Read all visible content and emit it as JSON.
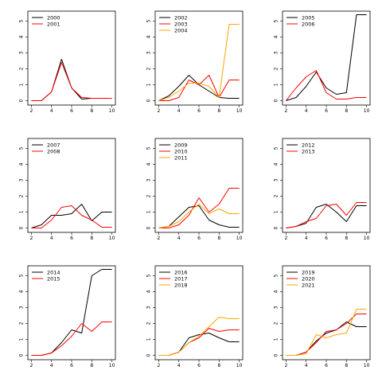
{
  "chart_data": [
    {
      "type": "line",
      "x": [
        2,
        3,
        4,
        5,
        6,
        7,
        8,
        9,
        10
      ],
      "ylim": [
        0,
        5.5
      ],
      "xlim": [
        2,
        10
      ],
      "xticks": [
        "2",
        "4",
        "6",
        "8",
        "10"
      ],
      "yticks": [
        "0",
        "1",
        "2",
        "3",
        "4",
        "5"
      ],
      "legend": "top-left",
      "series": [
        {
          "name": "2000",
          "color": "#000000",
          "values": [
            0,
            0,
            0.55,
            2.6,
            0.8,
            0.1,
            0.15,
            0.15,
            0.15
          ]
        },
        {
          "name": "2001",
          "color": "#ff0000",
          "values": [
            0,
            0,
            0.55,
            2.4,
            0.8,
            0.2,
            0.15,
            0.15,
            0.15
          ]
        }
      ]
    },
    {
      "type": "line",
      "x": [
        2,
        3,
        4,
        5,
        6,
        7,
        8,
        9,
        10
      ],
      "ylim": [
        0,
        5.5
      ],
      "xlim": [
        2,
        10
      ],
      "xticks": [
        "2",
        "4",
        "6",
        "8",
        "10"
      ],
      "yticks": [
        "0",
        "1",
        "2",
        "3",
        "4",
        "5"
      ],
      "legend": "top-left",
      "series": [
        {
          "name": "2002",
          "color": "#000000",
          "values": [
            0,
            0.3,
            0.9,
            1.6,
            1.0,
            0.6,
            0.2,
            0.15,
            0.15
          ]
        },
        {
          "name": "2003",
          "color": "#ff0000",
          "values": [
            0,
            0,
            0.2,
            1.3,
            1.0,
            1.6,
            0.2,
            1.3,
            1.3
          ]
        },
        {
          "name": "2004",
          "color": "#ffa500",
          "values": [
            0,
            0.2,
            0.6,
            1.1,
            1.1,
            0.9,
            0.2,
            4.8,
            4.8
          ]
        }
      ]
    },
    {
      "type": "line",
      "x": [
        2,
        3,
        4,
        5,
        6,
        7,
        8,
        9,
        10
      ],
      "ylim": [
        0,
        5.5
      ],
      "xlim": [
        2,
        10
      ],
      "xticks": [
        "2",
        "4",
        "6",
        "8",
        "10"
      ],
      "yticks": [
        "0",
        "1",
        "2",
        "3",
        "4",
        "5"
      ],
      "legend": "top-left",
      "series": [
        {
          "name": "2005",
          "color": "#000000",
          "values": [
            0,
            0.2,
            0.9,
            1.8,
            0.8,
            0.4,
            0.5,
            5.4,
            5.4
          ]
        },
        {
          "name": "2006",
          "color": "#ff0000",
          "values": [
            0,
            0.8,
            1.5,
            1.9,
            0.5,
            0.1,
            0.1,
            0.2,
            0.2
          ]
        }
      ]
    },
    {
      "type": "line",
      "x": [
        2,
        3,
        4,
        5,
        6,
        7,
        8,
        9,
        10
      ],
      "ylim": [
        0,
        5.5
      ],
      "xlim": [
        2,
        10
      ],
      "xticks": [
        "2",
        "4",
        "6",
        "8",
        "10"
      ],
      "yticks": [
        "0",
        "1",
        "2",
        "3",
        "4",
        "5"
      ],
      "legend": "top-left",
      "series": [
        {
          "name": "2007",
          "color": "#000000",
          "values": [
            0,
            0.2,
            0.8,
            0.8,
            0.9,
            1.5,
            0.45,
            1.0,
            1.0
          ]
        },
        {
          "name": "2008",
          "color": "#ff0000",
          "values": [
            0,
            0,
            0.5,
            1.3,
            1.4,
            0.8,
            0.5,
            0.05,
            0.05
          ]
        }
      ]
    },
    {
      "type": "line",
      "x": [
        2,
        3,
        4,
        5,
        6,
        7,
        8,
        9,
        10
      ],
      "ylim": [
        0,
        5.5
      ],
      "xlim": [
        2,
        10
      ],
      "xticks": [
        "2",
        "4",
        "6",
        "8",
        "10"
      ],
      "yticks": [
        "0",
        "1",
        "2",
        "3",
        "4",
        "5"
      ],
      "legend": "top-left",
      "series": [
        {
          "name": "2009",
          "color": "#000000",
          "values": [
            0,
            0.1,
            0.7,
            1.3,
            1.4,
            0.5,
            0.2,
            0.05,
            0.05
          ]
        },
        {
          "name": "2010",
          "color": "#ff0000",
          "values": [
            0,
            0,
            0.2,
            0.8,
            1.9,
            1.0,
            1.5,
            2.5,
            2.5
          ]
        },
        {
          "name": "2011",
          "color": "#ffa500",
          "values": [
            0,
            0.1,
            0.4,
            1.0,
            1.5,
            0.9,
            1.2,
            0.9,
            0.9
          ]
        }
      ]
    },
    {
      "type": "line",
      "x": [
        2,
        3,
        4,
        5,
        6,
        7,
        8,
        9,
        10
      ],
      "ylim": [
        0,
        5.5
      ],
      "xlim": [
        2,
        10
      ],
      "xticks": [
        "2",
        "4",
        "6",
        "8",
        "10"
      ],
      "yticks": [
        "0",
        "1",
        "2",
        "3",
        "4",
        "5"
      ],
      "legend": "top-left",
      "series": [
        {
          "name": "2012",
          "color": "#000000",
          "values": [
            0,
            0.1,
            0.3,
            1.3,
            1.5,
            1.0,
            0.4,
            1.4,
            1.4
          ]
        },
        {
          "name": "2013",
          "color": "#ff0000",
          "values": [
            0,
            0.1,
            0.4,
            0.6,
            1.4,
            1.5,
            0.8,
            1.6,
            1.6
          ]
        }
      ]
    },
    {
      "type": "line",
      "x": [
        2,
        3,
        4,
        5,
        6,
        7,
        8,
        9,
        10
      ],
      "ylim": [
        0,
        5.5
      ],
      "xlim": [
        2,
        10
      ],
      "xticks": [
        "2",
        "4",
        "6",
        "8",
        "10"
      ],
      "yticks": [
        "0",
        "1",
        "2",
        "3",
        "4",
        "5"
      ],
      "legend": "top-left",
      "series": [
        {
          "name": "2014",
          "color": "#000000",
          "values": [
            0,
            0,
            0.15,
            0.8,
            1.6,
            1.4,
            5.0,
            5.4,
            5.4
          ]
        },
        {
          "name": "2015",
          "color": "#ff0000",
          "values": [
            0,
            0,
            0.15,
            0.6,
            1.2,
            2.0,
            1.5,
            2.1,
            2.1
          ]
        }
      ]
    },
    {
      "type": "line",
      "x": [
        2,
        3,
        4,
        5,
        6,
        7,
        8,
        9,
        10
      ],
      "ylim": [
        0,
        5.5
      ],
      "xlim": [
        2,
        10
      ],
      "xticks": [
        "2",
        "4",
        "6",
        "8",
        "10"
      ],
      "yticks": [
        "0",
        "1",
        "2",
        "3",
        "4",
        "5"
      ],
      "legend": "top-left",
      "series": [
        {
          "name": "2016",
          "color": "#000000",
          "values": [
            0,
            0,
            0.2,
            1.1,
            1.3,
            1.4,
            1.1,
            0.85,
            0.85
          ]
        },
        {
          "name": "2017",
          "color": "#ff0000",
          "values": [
            0,
            0,
            0.2,
            0.8,
            1.1,
            1.7,
            1.5,
            1.6,
            1.6
          ]
        },
        {
          "name": "2018",
          "color": "#ffa500",
          "values": [
            0,
            0,
            0.2,
            0.8,
            1.2,
            1.8,
            2.4,
            2.3,
            2.3
          ]
        }
      ]
    },
    {
      "type": "line",
      "x": [
        2,
        3,
        4,
        5,
        6,
        7,
        8,
        9,
        10
      ],
      "ylim": [
        0,
        5.5
      ],
      "xlim": [
        2,
        10
      ],
      "xticks": [
        "2",
        "4",
        "6",
        "8",
        "10"
      ],
      "yticks": [
        "0",
        "1",
        "2",
        "3",
        "4",
        "5"
      ],
      "legend": "top-left",
      "series": [
        {
          "name": "2019",
          "color": "#000000",
          "values": [
            0,
            0,
            0.2,
            0.9,
            1.4,
            1.6,
            2.1,
            1.8,
            1.8
          ]
        },
        {
          "name": "2020",
          "color": "#ff0000",
          "values": [
            0,
            0,
            0.2,
            0.8,
            1.5,
            1.6,
            2.0,
            2.6,
            2.6
          ]
        },
        {
          "name": "2021",
          "color": "#ffa500",
          "values": [
            0,
            0,
            0.1,
            1.3,
            1.1,
            1.3,
            1.4,
            2.9,
            2.9
          ]
        }
      ]
    }
  ]
}
